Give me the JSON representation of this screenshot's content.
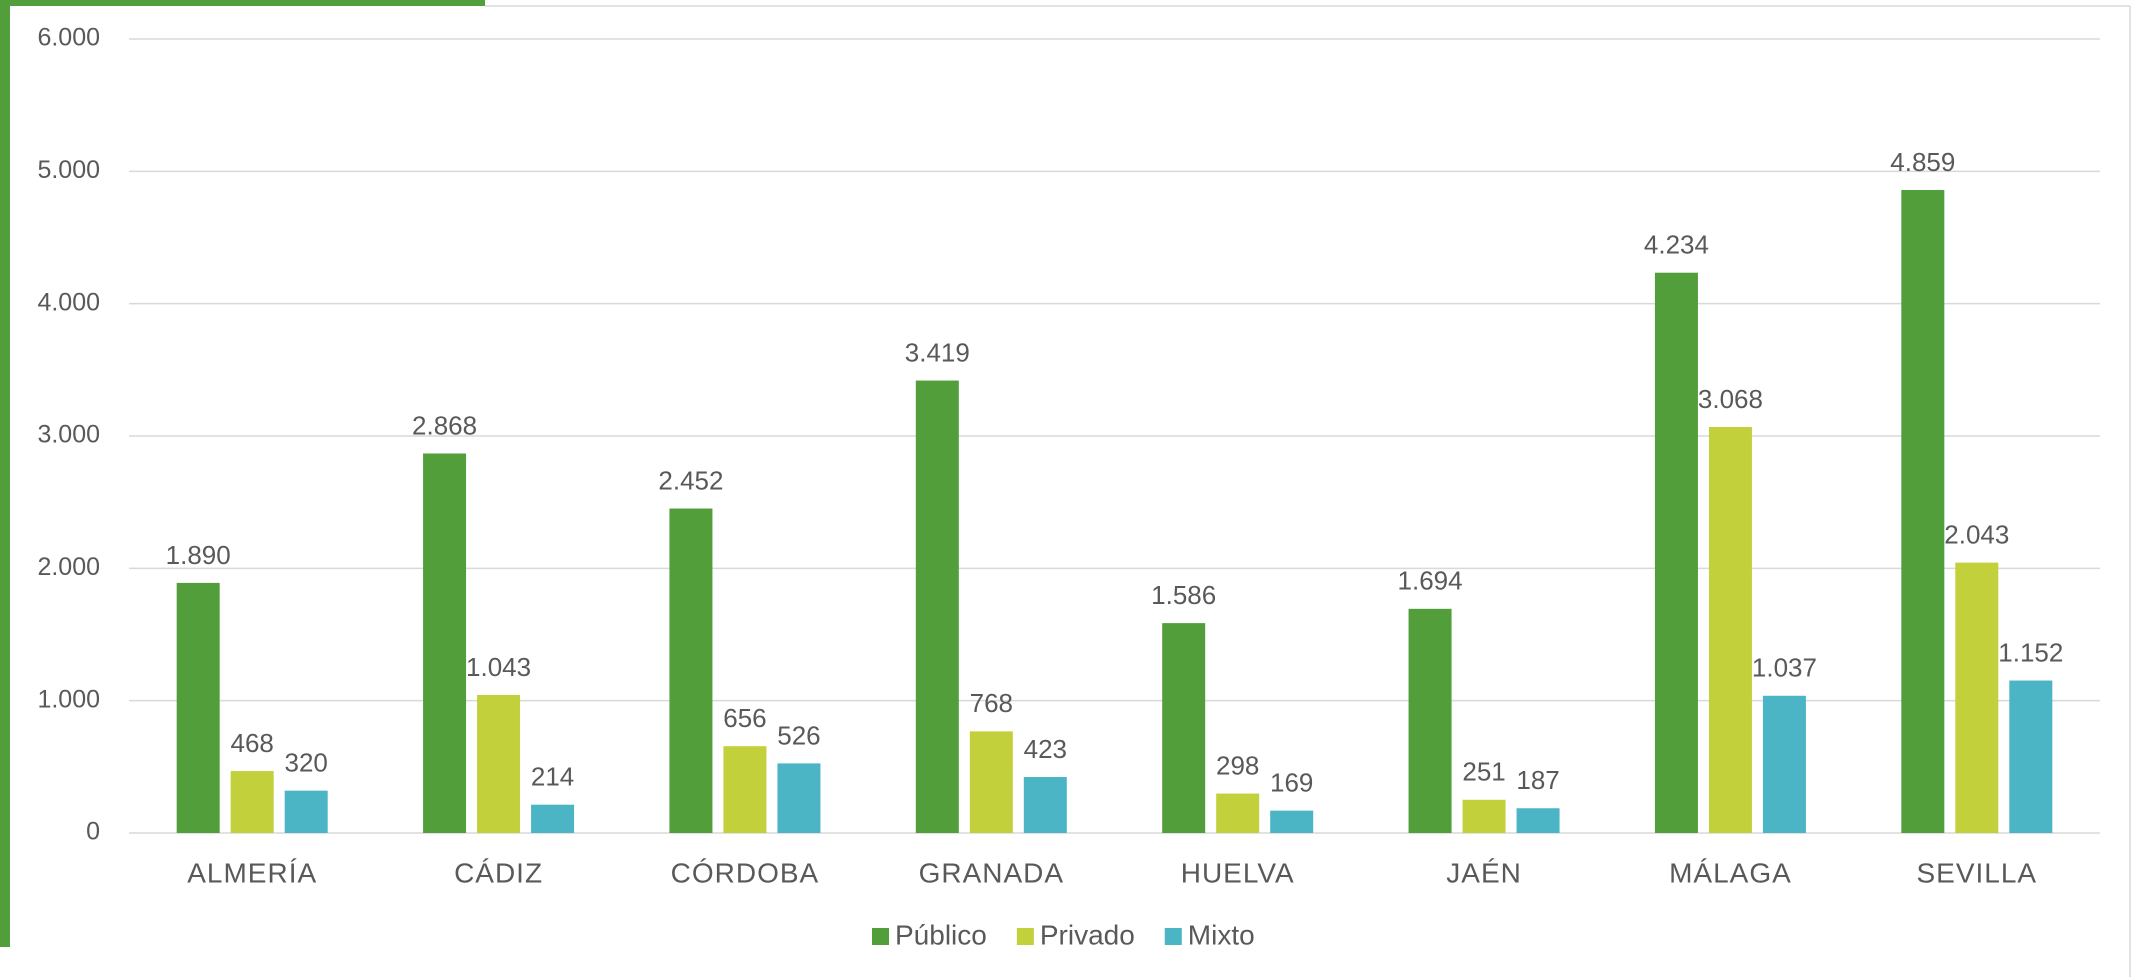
{
  "chart_data": {
    "type": "bar",
    "categories": [
      "ALMERÍA",
      "CÁDIZ",
      "CÓRDOBA",
      "GRANADA",
      "HUELVA",
      "JAÉN",
      "MÁLAGA",
      "SEVILLA"
    ],
    "series": [
      {
        "name": "Público",
        "color": "#529e3b",
        "values": [
          1890,
          2868,
          2452,
          3419,
          1586,
          1694,
          4234,
          4859
        ],
        "value_labels": [
          "1.890",
          "2.868",
          "2.452",
          "3.419",
          "1.586",
          "1.694",
          "4.234",
          "4.859"
        ]
      },
      {
        "name": "Privado",
        "color": "#c2d03b",
        "values": [
          468,
          1043,
          656,
          768,
          298,
          251,
          3068,
          2043
        ],
        "value_labels": [
          "468",
          "1.043",
          "656",
          "768",
          "298",
          "251",
          "3.068",
          "2.043"
        ]
      },
      {
        "name": "Mixto",
        "color": "#4bb5c5",
        "values": [
          320,
          214,
          526,
          423,
          169,
          187,
          1037,
          1152
        ],
        "value_labels": [
          "320",
          "214",
          "526",
          "423",
          "169",
          "187",
          "1.037",
          "1.152"
        ]
      }
    ],
    "ylim": [
      0,
      6000
    ],
    "yticks": [
      0,
      {
        "value": 1000,
        "label": "1.000"
      },
      {
        "value": 2000,
        "label": "2.000"
      },
      {
        "value": 3000,
        "label": "3.000"
      },
      {
        "value": 4000,
        "label": "4.000"
      },
      {
        "value": 5000,
        "label": "5.000"
      },
      {
        "value": 6000,
        "label": "6.000"
      }
    ],
    "grid": true,
    "legend": "bottom"
  }
}
